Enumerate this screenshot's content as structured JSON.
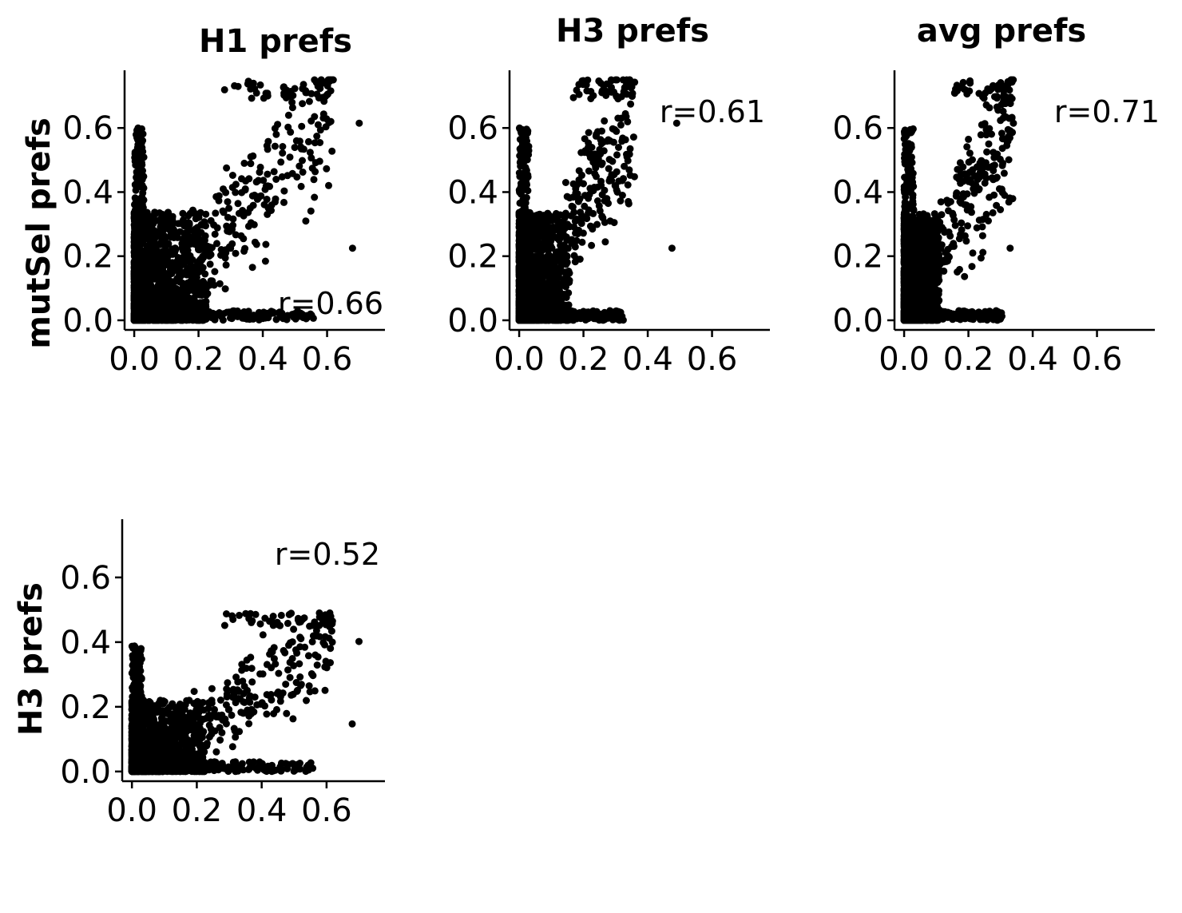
{
  "chart_data": [
    {
      "type": "scatter",
      "title": "H1 prefs",
      "xlabel": "",
      "ylabel": "mutSel prefs",
      "xlim": [
        -0.03,
        0.78
      ],
      "ylim": [
        -0.03,
        0.78
      ],
      "xticks": [
        "0.0",
        "0.2",
        "0.4",
        "0.6"
      ],
      "yticks": [
        "0.0",
        "0.2",
        "0.4",
        "0.6"
      ],
      "annotation": "r=0.66",
      "annotation_position": "bottom-right",
      "grid": false,
      "series": [
        {
          "x_range": [
            0,
            0.7
          ],
          "y_range": [
            0,
            0.75
          ],
          "x_focus": 0.62,
          "seed": 11
        }
      ]
    },
    {
      "type": "scatter",
      "title": "H3 prefs",
      "xlabel": "",
      "ylabel": "",
      "xlim": [
        -0.03,
        0.78
      ],
      "ylim": [
        -0.03,
        0.78
      ],
      "xticks": [
        "0.0",
        "0.2",
        "0.4",
        "0.6"
      ],
      "yticks": [
        "0.0",
        "0.2",
        "0.4",
        "0.6"
      ],
      "annotation": "r=0.61",
      "annotation_position": "top-right",
      "grid": false,
      "series": [
        {
          "x_range": [
            0,
            0.49
          ],
          "y_range": [
            0,
            0.75
          ],
          "x_focus": 0.36,
          "seed": 23
        }
      ]
    },
    {
      "type": "scatter",
      "title": "avg prefs",
      "xlabel": "",
      "ylabel": "",
      "xlim": [
        -0.03,
        0.78
      ],
      "ylim": [
        -0.03,
        0.78
      ],
      "xticks": [
        "0.0",
        "0.2",
        "0.4",
        "0.6"
      ],
      "yticks": [
        "0.0",
        "0.2",
        "0.4",
        "0.6"
      ],
      "annotation": "r=0.71",
      "annotation_position": "top-right",
      "grid": false,
      "series": [
        {
          "x_range": [
            0,
            0.34
          ],
          "y_range": [
            0,
            0.75
          ],
          "x_focus": 0.34,
          "seed": 37
        }
      ]
    },
    {
      "type": "scatter",
      "title": "",
      "xlabel": "",
      "ylabel": "H3 prefs",
      "xlim": [
        -0.03,
        0.78
      ],
      "ylim": [
        -0.03,
        0.78
      ],
      "xticks": [
        "0.0",
        "0.2",
        "0.4",
        "0.6"
      ],
      "yticks": [
        "0.0",
        "0.2",
        "0.4",
        "0.6"
      ],
      "annotation": "r=0.52",
      "annotation_position": "top-right",
      "grid": false,
      "series": [
        {
          "x_range": [
            0,
            0.7
          ],
          "y_range": [
            0,
            0.49
          ],
          "x_focus": 0.62,
          "seed": 53
        }
      ]
    }
  ]
}
